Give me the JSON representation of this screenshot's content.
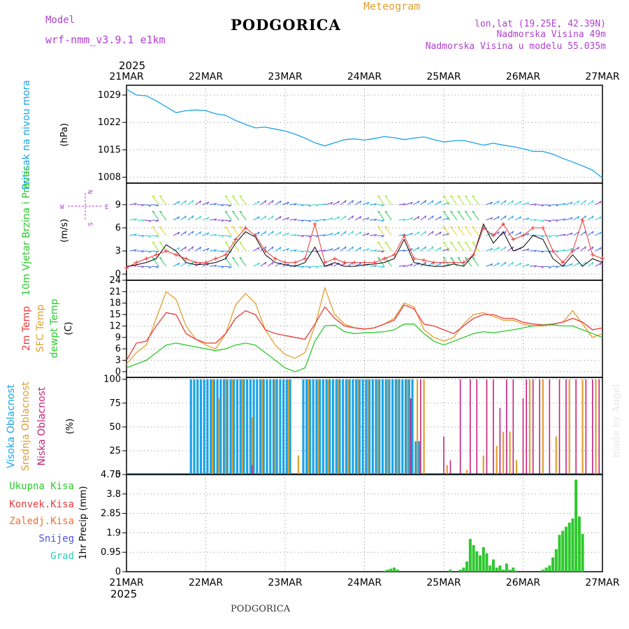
{
  "header": {
    "model_label": "Model",
    "model_name": "wrf-nmm_v3.9.1 e1km",
    "station": "PODGORICA",
    "product": "Meteogram",
    "coords": "lon,lat (19.25E, 42.39N)",
    "elevation": "Nadmorska Visina 49m",
    "model_elevation": "Nadmorska Visina u modelu 55.035m",
    "year": "2025",
    "footer_station": "PODGORICA",
    "watermark": "made by Angel"
  },
  "colors": {
    "pressure": "#1ba3e8",
    "temp2m": "#e83a3a",
    "sfc": "#e0a030",
    "dewpt": "#2ec82e",
    "cloud_high": "#1ba3e8",
    "cloud_mid": "#e0a030",
    "cloud_low": "#c8207a",
    "precip": "#2ec82e",
    "wind_dir_label": "#b040d0"
  },
  "dates": [
    "21MAR",
    "22MAR",
    "23MAR",
    "24MAR",
    "25MAR",
    "26MAR",
    "27MAR"
  ],
  "chart_data": [
    {
      "type": "line",
      "name": "pressure",
      "ylabel_color_text": "Pritisak na nivou mora",
      "ylabel_unit": "(hPa)",
      "yticks": [
        1008,
        1015,
        1022,
        1029
      ],
      "ylim": [
        1006.5,
        1031.5
      ],
      "xlim": [
        0,
        144
      ],
      "x": [
        0,
        3,
        6,
        9,
        12,
        15,
        18,
        21,
        24,
        27,
        30,
        33,
        36,
        39,
        42,
        45,
        48,
        51,
        54,
        57,
        60,
        63,
        66,
        69,
        72,
        75,
        78,
        81,
        84,
        87,
        90,
        93,
        96,
        99,
        102,
        105,
        108,
        111,
        114,
        117,
        120,
        123,
        126,
        129,
        132,
        135,
        138,
        141,
        144
      ],
      "values": [
        1030.5,
        1029.0,
        1028.8,
        1027.5,
        1026.0,
        1024.5,
        1025.0,
        1025.2,
        1025.0,
        1024.2,
        1023.8,
        1022.5,
        1021.5,
        1020.6,
        1020.8,
        1020.3,
        1019.8,
        1019.0,
        1018.0,
        1016.8,
        1016.0,
        1016.8,
        1017.6,
        1017.8,
        1017.5,
        1017.9,
        1018.4,
        1018.1,
        1017.6,
        1018.0,
        1018.3,
        1017.6,
        1017.0,
        1017.3,
        1017.4,
        1016.8,
        1016.2,
        1016.7,
        1016.2,
        1015.8,
        1015.3,
        1014.6,
        1014.6,
        1013.9,
        1012.8,
        1011.9,
        1010.9,
        1009.8,
        1007.8
      ]
    },
    {
      "type": "line",
      "name": "wind",
      "ylabel_color_text": "10m Vjetar Brzina i Pravac",
      "ylabel_unit": "(m/s)",
      "compass": {
        "n": "N",
        "s": "S",
        "e": "E",
        "w": "W"
      },
      "yticks": [
        0,
        3,
        6,
        9
      ],
      "ylim": [
        -0.8,
        11.8
      ],
      "xlim": [
        0,
        144
      ],
      "x": [
        0,
        3,
        6,
        9,
        12,
        15,
        18,
        21,
        24,
        27,
        30,
        33,
        36,
        39,
        42,
        45,
        48,
        51,
        54,
        57,
        60,
        63,
        66,
        69,
        72,
        75,
        78,
        81,
        84,
        87,
        90,
        93,
        96,
        99,
        102,
        105,
        108,
        111,
        114,
        117,
        120,
        123,
        126,
        129,
        132,
        135,
        138,
        141,
        144
      ],
      "values": [
        1.0,
        1.2,
        1.5,
        2.0,
        3.8,
        3.0,
        1.5,
        1.2,
        1.3,
        1.5,
        2.0,
        4.0,
        5.5,
        4.8,
        2.5,
        1.5,
        1.2,
        1.0,
        1.5,
        3.5,
        1.0,
        1.5,
        1.0,
        1.0,
        1.2,
        1.3,
        1.5,
        2.0,
        4.5,
        1.5,
        1.2,
        1.0,
        1.0,
        1.3,
        1.0,
        2.5,
        6.5,
        4.0,
        5.5,
        3.0,
        3.5,
        5.0,
        4.5,
        2.0,
        1.0,
        2.5,
        1.0,
        2.0,
        1.5
      ],
      "gust_values": [
        0.8,
        1.5,
        2.0,
        2.5,
        3.0,
        2.5,
        2.0,
        1.5,
        1.5,
        2.0,
        2.5,
        4.5,
        6.0,
        5.0,
        3.0,
        2.0,
        1.5,
        1.5,
        2.0,
        6.5,
        1.5,
        2.0,
        1.5,
        1.5,
        1.5,
        1.5,
        2.0,
        2.5,
        5.0,
        2.0,
        1.8,
        1.5,
        1.5,
        1.5,
        1.5,
        2.5,
        6.0,
        5.0,
        6.5,
        4.5,
        5.0,
        6.0,
        6.0,
        3.0,
        1.5,
        3.0,
        7.0,
        2.5,
        2.0
      ],
      "barb_rows": [
        1,
        3,
        5,
        7,
        9
      ]
    },
    {
      "type": "line",
      "name": "temperature",
      "series_labels": [
        "2m Temp",
        "SFC Temp",
        "dewpt Temp"
      ],
      "ylabel_unit": "(C)",
      "yticks": [
        0,
        3,
        6,
        9,
        12,
        15,
        18,
        21,
        24
      ],
      "ylim": [
        -1.5,
        24
      ],
      "xlim": [
        0,
        144
      ],
      "x": [
        0,
        3,
        6,
        9,
        12,
        15,
        18,
        21,
        24,
        27,
        30,
        33,
        36,
        39,
        42,
        45,
        48,
        51,
        54,
        57,
        60,
        63,
        66,
        69,
        72,
        75,
        78,
        81,
        84,
        87,
        90,
        93,
        96,
        99,
        102,
        105,
        108,
        111,
        114,
        117,
        120,
        123,
        126,
        129,
        132,
        135,
        138,
        141,
        144
      ],
      "series": [
        {
          "name": "2m Temp",
          "values": [
            3,
            7.5,
            8,
            12,
            15.5,
            15,
            10,
            8.5,
            7.5,
            7.5,
            10,
            14,
            16,
            15,
            11,
            10,
            9.5,
            9,
            8.5,
            12.5,
            17,
            14,
            12,
            11.5,
            11.2,
            11.5,
            12.5,
            13.5,
            17.5,
            16.5,
            12.5,
            12,
            11,
            10,
            12,
            14,
            15,
            15,
            14,
            14,
            13,
            12.5,
            12.3,
            12.5,
            13,
            14,
            13,
            11,
            11.5
          ]
        },
        {
          "name": "SFC Temp",
          "values": [
            2,
            5,
            7,
            14,
            21,
            19,
            12,
            8.5,
            7,
            6,
            10,
            17.5,
            20.5,
            18,
            11,
            7,
            4.5,
            3.5,
            5,
            12,
            22,
            15,
            12.5,
            11.5,
            11.2,
            11.5,
            12.5,
            14,
            18,
            17,
            11,
            9,
            8,
            9,
            12.5,
            15,
            15.5,
            14.5,
            13.5,
            13.5,
            12.5,
            12,
            12,
            12.5,
            13,
            16,
            12.5,
            9,
            10
          ]
        },
        {
          "name": "dewpt Temp",
          "values": [
            1,
            2,
            3,
            5,
            7,
            7.5,
            7,
            6.5,
            6,
            5.5,
            6,
            7,
            7.5,
            7,
            5,
            3,
            1,
            0,
            1,
            8,
            12,
            12.2,
            10.5,
            10,
            10.2,
            10.3,
            10.5,
            11,
            12.5,
            12.5,
            10,
            8,
            7,
            8,
            9,
            10,
            10.5,
            10.2,
            10.6,
            11,
            11.5,
            12,
            12.2,
            12.3,
            12,
            12,
            11,
            10,
            9
          ]
        }
      ]
    },
    {
      "type": "bar",
      "name": "clouds",
      "series_labels": [
        "Visoka Oblacnost",
        "Srednja Oblacnost",
        "Niska Oblacnost"
      ],
      "ylabel_unit": "(%)",
      "yticks": [
        0,
        25,
        50,
        75,
        100
      ],
      "ylim": [
        0,
        102
      ],
      "xlim": [
        0,
        144
      ],
      "series": [
        {
          "name": "Visoka Oblacnost",
          "points": [
            [
              19.5,
              100
            ],
            [
              20.5,
              100
            ],
            [
              21.5,
              100
            ],
            [
              22.5,
              100
            ],
            [
              23.5,
              100
            ],
            [
              24.5,
              100
            ],
            [
              25.5,
              100
            ],
            [
              26.5,
              100
            ],
            [
              27.5,
              100
            ],
            [
              28.5,
              100
            ],
            [
              29.5,
              100
            ],
            [
              30.5,
              100
            ],
            [
              31.5,
              100
            ],
            [
              32.5,
              100
            ],
            [
              33.5,
              100
            ],
            [
              34.5,
              100
            ],
            [
              35.5,
              100
            ],
            [
              36.5,
              100
            ],
            [
              37.5,
              100
            ],
            [
              38.5,
              100
            ],
            [
              39.5,
              100
            ],
            [
              40.5,
              100
            ],
            [
              41.5,
              100
            ],
            [
              42.5,
              100
            ],
            [
              43.5,
              100
            ],
            [
              44.5,
              100
            ],
            [
              45.5,
              100
            ],
            [
              46.5,
              100
            ],
            [
              47.5,
              100
            ],
            [
              48.5,
              100
            ],
            [
              49.5,
              100
            ],
            [
              53.5,
              100
            ],
            [
              54.5,
              100
            ],
            [
              55.5,
              100
            ],
            [
              56.5,
              100
            ],
            [
              57.5,
              100
            ],
            [
              58.5,
              100
            ],
            [
              59.5,
              100
            ],
            [
              60.5,
              100
            ],
            [
              61.5,
              100
            ],
            [
              62.5,
              100
            ],
            [
              63.5,
              100
            ],
            [
              64.5,
              100
            ],
            [
              65.5,
              100
            ],
            [
              66.5,
              100
            ],
            [
              67.5,
              100
            ],
            [
              68.5,
              100
            ],
            [
              69.5,
              100
            ],
            [
              70.5,
              100
            ],
            [
              71.5,
              100
            ],
            [
              72.5,
              100
            ],
            [
              73.5,
              100
            ],
            [
              74.5,
              100
            ],
            [
              75.5,
              100
            ],
            [
              76.5,
              100
            ],
            [
              77.5,
              100
            ],
            [
              78.5,
              100
            ],
            [
              79.5,
              100
            ],
            [
              80.5,
              100
            ],
            [
              81.5,
              100
            ],
            [
              82.5,
              100
            ],
            [
              83.5,
              100
            ],
            [
              84.5,
              100
            ],
            [
              85.5,
              100
            ],
            [
              86.5,
              100
            ],
            [
              87.5,
              35
            ],
            [
              88.5,
              35
            ]
          ]
        },
        {
          "name": "Srednja Oblacnost",
          "points": [
            [
              26,
              100
            ],
            [
              28,
              80
            ],
            [
              30,
              100
            ],
            [
              32,
              100
            ],
            [
              35,
              100
            ],
            [
              38,
              60
            ],
            [
              41,
              100
            ],
            [
              45,
              100
            ],
            [
              49,
              100
            ],
            [
              52,
              20
            ],
            [
              55,
              100
            ],
            [
              58,
              100
            ],
            [
              61,
              100
            ],
            [
              64,
              100
            ],
            [
              67,
              100
            ],
            [
              70,
              100
            ],
            [
              73,
              100
            ],
            [
              76,
              100
            ],
            [
              79,
              100
            ],
            [
              82,
              100
            ],
            [
              85,
              100
            ],
            [
              88,
              100
            ],
            [
              90,
              100
            ],
            [
              97,
              10
            ],
            [
              103,
              5
            ],
            [
              108,
              20
            ],
            [
              112,
              30
            ],
            [
              114,
              45
            ],
            [
              116,
              45
            ],
            [
              118,
              15
            ],
            [
              122,
              100
            ],
            [
              126,
              100
            ],
            [
              130,
              40
            ],
            [
              134,
              100
            ],
            [
              138,
              100
            ],
            [
              142,
              100
            ]
          ]
        },
        {
          "name": "Niska Oblacnost",
          "points": [
            [
              38,
              10
            ],
            [
              86,
              80
            ],
            [
              89,
              100
            ],
            [
              96,
              40
            ],
            [
              98,
              15
            ],
            [
              101,
              100
            ],
            [
              104,
              100
            ],
            [
              106,
              100
            ],
            [
              109,
              100
            ],
            [
              111,
              100
            ],
            [
              113,
              70
            ],
            [
              115,
              100
            ],
            [
              117,
              100
            ],
            [
              120,
              80
            ],
            [
              121,
              100
            ],
            [
              123,
              100
            ],
            [
              125,
              100
            ],
            [
              128,
              100
            ],
            [
              131,
              100
            ],
            [
              133,
              100
            ],
            [
              136,
              100
            ],
            [
              139,
              100
            ],
            [
              141,
              100
            ],
            [
              143,
              100
            ]
          ]
        }
      ]
    },
    {
      "type": "bar",
      "name": "precipitation",
      "series_labels": [
        "Ukupna Kisa",
        "Konvek.Kisa",
        "Zaledj.Kisa",
        "Snijeg",
        "Grad"
      ],
      "ylabel_unit": "1hr Precip (mm)",
      "yticks": [
        0,
        0.95,
        1.9,
        2.85,
        3.8,
        4.75
      ],
      "ylim": [
        0,
        4.75
      ],
      "xlim": [
        0,
        144
      ],
      "values_x": [
        78,
        79,
        80,
        81,
        82,
        98,
        101,
        102,
        103,
        104,
        105,
        106,
        107,
        108,
        109,
        110,
        111,
        112,
        113,
        114,
        115,
        116,
        117,
        118,
        126,
        127,
        128,
        129,
        130,
        131,
        132,
        133,
        134,
        135,
        136,
        137,
        138
      ],
      "values": [
        0.05,
        0.1,
        0.15,
        0.2,
        0.1,
        0.1,
        0.1,
        0.2,
        0.5,
        1.6,
        1.3,
        1.0,
        0.8,
        1.2,
        0.9,
        0.3,
        0.6,
        0.2,
        0.3,
        0.1,
        0.4,
        0.1,
        0.2,
        0.05,
        0.1,
        0.2,
        0.3,
        0.7,
        1.1,
        1.8,
        2.0,
        2.2,
        2.4,
        2.6,
        4.5,
        2.7,
        1.85
      ]
    }
  ]
}
